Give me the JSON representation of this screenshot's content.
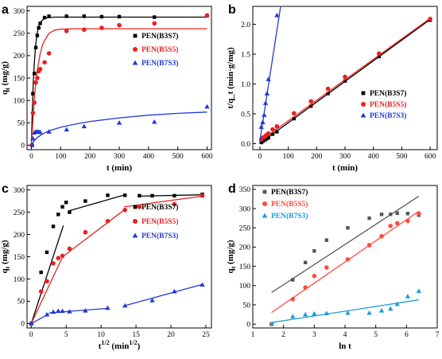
{
  "chart_data": [
    {
      "panel": "a",
      "type": "scatter",
      "xlabel": "t (min)",
      "ylabel": "q_t (mg/g)",
      "xlim": [
        -15,
        615
      ],
      "ylim": [
        -10,
        310
      ],
      "xticks": [
        0,
        100,
        200,
        300,
        400,
        500,
        600
      ],
      "yticks": [
        0,
        50,
        100,
        150,
        200,
        250,
        300
      ],
      "legend_position": "right-middle",
      "series": [
        {
          "name": "PEN(B3S7)",
          "color": "#000000",
          "marker": "square",
          "x": [
            2,
            5,
            10,
            15,
            20,
            25,
            30,
            45,
            60,
            120,
            180,
            240,
            300,
            420,
            600
          ],
          "y": [
            0,
            115,
            160,
            218,
            245,
            262,
            272,
            285,
            288,
            288,
            288,
            287,
            287,
            286,
            289
          ],
          "fit": {
            "x": [
              0,
              3,
              6,
              10,
              15,
              20,
              25,
              30,
              40,
              50,
              60,
              80,
              100,
              150,
              200,
              300,
              420,
              600
            ],
            "y": [
              0,
              75,
              133,
              185,
              226,
              251,
              266,
              274,
              281,
              284,
              285,
              286,
              286,
              286,
              286,
              286,
              286,
              286
            ]
          }
        },
        {
          "name": "PEN(B5S5)",
          "color": "#e8211f",
          "marker": "circle",
          "x": [
            2,
            5,
            10,
            15,
            20,
            25,
            30,
            45,
            60,
            120,
            180,
            240,
            300,
            420,
            600
          ],
          "y": [
            0,
            72,
            95,
            140,
            150,
            165,
            170,
            185,
            205,
            255,
            258,
            262,
            268,
            272,
            290
          ],
          "fit": {
            "x": [
              0,
              5,
              10,
              15,
              20,
              30,
              40,
              60,
              80,
              100,
              150,
              200,
              300,
              420,
              600
            ],
            "y": [
              0,
              55,
              103,
              140,
              167,
              205,
              228,
              250,
              257,
              259,
              260,
              260,
              260,
              260,
              260
            ]
          }
        },
        {
          "name": "PEN(B7S3)",
          "color": "#1f3ad6",
          "marker": "triangle",
          "x": [
            2,
            5,
            10,
            15,
            20,
            25,
            30,
            60,
            120,
            180,
            300,
            420,
            600
          ],
          "y": [
            0,
            15,
            28,
            30,
            30,
            30,
            29,
            30,
            35,
            42,
            50,
            52,
            86
          ],
          "fit": {
            "x": [
              0,
              10,
              20,
              40,
              60,
              100,
              150,
              200,
              300,
              400,
              500,
              600
            ],
            "y": [
              0,
              10,
              17,
              26,
              32,
              40,
              47,
              53,
              61,
              67,
              71,
              74
            ]
          }
        }
      ]
    },
    {
      "panel": "b",
      "type": "scatter",
      "xlabel": "t (min)",
      "ylabel": "t/q_t (min·g/mg)",
      "xlim": [
        -25,
        625
      ],
      "ylim": [
        -0.1,
        2.3
      ],
      "xticks": [
        0,
        100,
        200,
        300,
        400,
        500,
        600
      ],
      "yticks": [
        0.0,
        0.5,
        1.0,
        1.5,
        2.0
      ],
      "legend_position": "bottom-right",
      "series": [
        {
          "name": "PEN(B3S7)",
          "color": "#000000",
          "marker": "square",
          "x": [
            5,
            10,
            15,
            20,
            25,
            30,
            45,
            60,
            120,
            180,
            240,
            300,
            420,
            600
          ],
          "y": [
            0.02,
            0.04,
            0.06,
            0.07,
            0.09,
            0.1,
            0.16,
            0.2,
            0.42,
            0.63,
            0.84,
            1.05,
            1.46,
            2.07
          ],
          "fit": {
            "x": [
              0,
              600
            ],
            "y": [
              0.005,
              2.08
            ]
          }
        },
        {
          "name": "PEN(B5S5)",
          "color": "#e8211f",
          "marker": "circle",
          "x": [
            5,
            10,
            15,
            20,
            25,
            30,
            45,
            60,
            120,
            180,
            240,
            300,
            420,
            600
          ],
          "y": [
            0.07,
            0.1,
            0.11,
            0.13,
            0.15,
            0.17,
            0.24,
            0.29,
            0.51,
            0.71,
            0.92,
            1.12,
            1.51,
            2.09
          ],
          "fit": {
            "x": [
              0,
              600
            ],
            "y": [
              0.04,
              2.1
            ]
          }
        },
        {
          "name": "PEN(B7S3)",
          "color": "#1f3ad6",
          "marker": "triangle",
          "x": [
            5,
            10,
            15,
            20,
            25,
            30,
            60
          ],
          "y": [
            0.28,
            0.36,
            0.48,
            0.68,
            0.84,
            1.08,
            2.15
          ],
          "fit": {
            "x": [
              0,
              73
            ],
            "y": [
              0.05,
              2.3
            ]
          }
        }
      ]
    },
    {
      "panel": "c",
      "type": "scatter",
      "xlabel": "t^(1/2) (min^(1/2))",
      "ylabel": "q_t (mg/g)",
      "xlim": [
        -0.6,
        25.8
      ],
      "ylim": [
        -10,
        310
      ],
      "xticks": [
        0,
        5,
        10,
        15,
        20,
        25
      ],
      "yticks": [
        0,
        50,
        100,
        150,
        200,
        250,
        300
      ],
      "legend_position": "right-middle",
      "series": [
        {
          "name": "PEN(B3S7)",
          "color": "#000000",
          "marker": "square",
          "x": [
            0,
            1.41,
            2.24,
            3.16,
            3.87,
            4.47,
            5,
            5.48,
            7.75,
            10.95,
            13.42,
            15.49,
            17.32,
            20.49,
            24.49
          ],
          "y": [
            0,
            115,
            160,
            218,
            245,
            262,
            272,
            250,
            275,
            288,
            288,
            287,
            287,
            287,
            290
          ],
          "fit": [
            {
              "x": [
                0,
                4.6
              ],
              "y": [
                0,
                220
              ]
            },
            {
              "x": [
                5.4,
                13.2
              ],
              "y": [
                253,
                288
              ]
            },
            {
              "x": [
                15.5,
                24.5
              ],
              "y": [
                286,
                289
              ]
            }
          ]
        },
        {
          "name": "PEN(B5S5)",
          "color": "#e8211f",
          "marker": "circle",
          "x": [
            0,
            1.41,
            2.24,
            3.16,
            3.87,
            4.47,
            5.48,
            7.75,
            10.95,
            13.42,
            15.49,
            20.49,
            24.49
          ],
          "y": [
            0,
            72,
            95,
            135,
            147,
            152,
            168,
            205,
            230,
            255,
            262,
            268,
            287
          ],
          "fit": [
            {
              "x": [
                0,
                4.5
              ],
              "y": [
                0,
                150
              ]
            },
            {
              "x": [
                4.5,
                13.3
              ],
              "y": [
                150,
                255
              ]
            },
            {
              "x": [
                13.3,
                24.5
              ],
              "y": [
                262,
                286
              ]
            }
          ]
        },
        {
          "name": "PEN(B7S3)",
          "color": "#1f3ad6",
          "marker": "triangle",
          "x": [
            0,
            2.24,
            3.16,
            3.87,
            4.47,
            5.48,
            7.75,
            10.95,
            13.42,
            17.32,
            20.49,
            24.49
          ],
          "y": [
            0,
            20,
            26,
            28,
            28,
            27,
            29,
            35,
            40,
            52,
            72,
            87
          ],
          "fit": [
            {
              "x": [
                0,
                2.6
              ],
              "y": [
                0,
                22
              ]
            },
            {
              "x": [
                2.6,
                11
              ],
              "y": [
                24,
                34
              ]
            },
            {
              "x": [
                13.4,
                24.5
              ],
              "y": [
                40,
                88
              ]
            }
          ]
        }
      ]
    },
    {
      "panel": "d",
      "type": "scatter",
      "xlabel": "ln t",
      "ylabel": "q_t (mg/g)",
      "xlim": [
        1,
        7
      ],
      "ylim": [
        -10,
        360
      ],
      "xticks": [
        1,
        2,
        3,
        4,
        5,
        6,
        7
      ],
      "yticks": [
        0,
        50,
        100,
        150,
        200,
        250,
        300,
        350
      ],
      "legend_position": "top-left",
      "series": [
        {
          "name": "PEN(B3S7)",
          "color": "#555555",
          "marker": "square",
          "x": [
            1.61,
            2.3,
            2.71,
            3.0,
            3.4,
            4.09,
            4.79,
            5.19,
            5.48,
            5.7,
            6.04,
            6.4
          ],
          "y": [
            0,
            115,
            160,
            190,
            218,
            250,
            275,
            285,
            285,
            288,
            287,
            283
          ],
          "fit": {
            "x": [
              1.61,
              6.4
            ],
            "y": [
              82,
              332
            ]
          }
        },
        {
          "name": "PEN(B5S5)",
          "color": "#ff4b3e",
          "marker": "circle",
          "x": [
            1.61,
            2.3,
            2.71,
            3.0,
            3.4,
            4.09,
            4.79,
            5.19,
            5.48,
            5.7,
            6.04,
            6.4
          ],
          "y": [
            0,
            65,
            95,
            125,
            147,
            168,
            205,
            228,
            255,
            262,
            268,
            287
          ],
          "fit": {
            "x": [
              1.61,
              6.4
            ],
            "y": [
              30,
              293
            ]
          }
        },
        {
          "name": "PEN(B7S3)",
          "color": "#1d9bd8",
          "marker": "triangle",
          "x": [
            1.61,
            2.3,
            2.71,
            3.0,
            3.4,
            4.09,
            4.79,
            5.19,
            5.48,
            5.7,
            6.04,
            6.4
          ],
          "y": [
            0,
            20,
            25,
            27,
            28,
            29,
            29,
            35,
            40,
            52,
            72,
            86
          ],
          "fit": {
            "x": [
              1.61,
              6.4
            ],
            "y": [
              4,
              63
            ]
          }
        }
      ]
    }
  ]
}
